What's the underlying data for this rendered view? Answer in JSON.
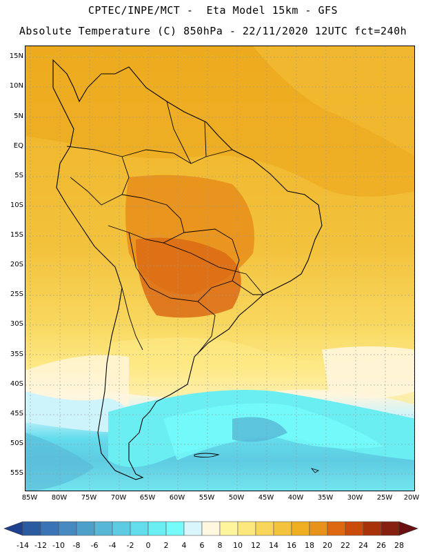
{
  "header": {
    "line1": "CPTEC/INPE/MCT -  Eta Model 15km - GFS",
    "line2": "Absolute Temperature (C) 850hPa - 22/11/2020 12UTC fct=240h"
  },
  "map": {
    "lat_labels": [
      "15N",
      "10N",
      "5N",
      "EQ",
      "5S",
      "10S",
      "15S",
      "20S",
      "25S",
      "30S",
      "35S",
      "40S",
      "45S",
      "50S",
      "55S"
    ],
    "lon_labels": [
      "85W",
      "80W",
      "75W",
      "70W",
      "65W",
      "60W",
      "55W",
      "50W",
      "45W",
      "40W",
      "35W",
      "30W",
      "25W",
      "20W"
    ]
  },
  "colorbar": {
    "labels": [
      "-14",
      "-12",
      "-10",
      "-8",
      "-6",
      "-4",
      "-2",
      "0",
      "2",
      "4",
      "6",
      "8",
      "10",
      "12",
      "14",
      "16",
      "18",
      "20",
      "22",
      "24",
      "26",
      "28"
    ],
    "colors": [
      "#1f3f8f",
      "#2a5aa0",
      "#3a74b4",
      "#4688c0",
      "#4f9fcb",
      "#58b7d7",
      "#5ecbe2",
      "#63dcec",
      "#6aeef2",
      "#74fbfa",
      "#d8f6fb",
      "#fff7e0",
      "#fff59c",
      "#fde87b",
      "#f8d65c",
      "#f3c33c",
      "#eeae1f",
      "#e7921a",
      "#dd6810",
      "#c94a0b",
      "#a83109",
      "#862011",
      "#6a1010"
    ]
  }
}
